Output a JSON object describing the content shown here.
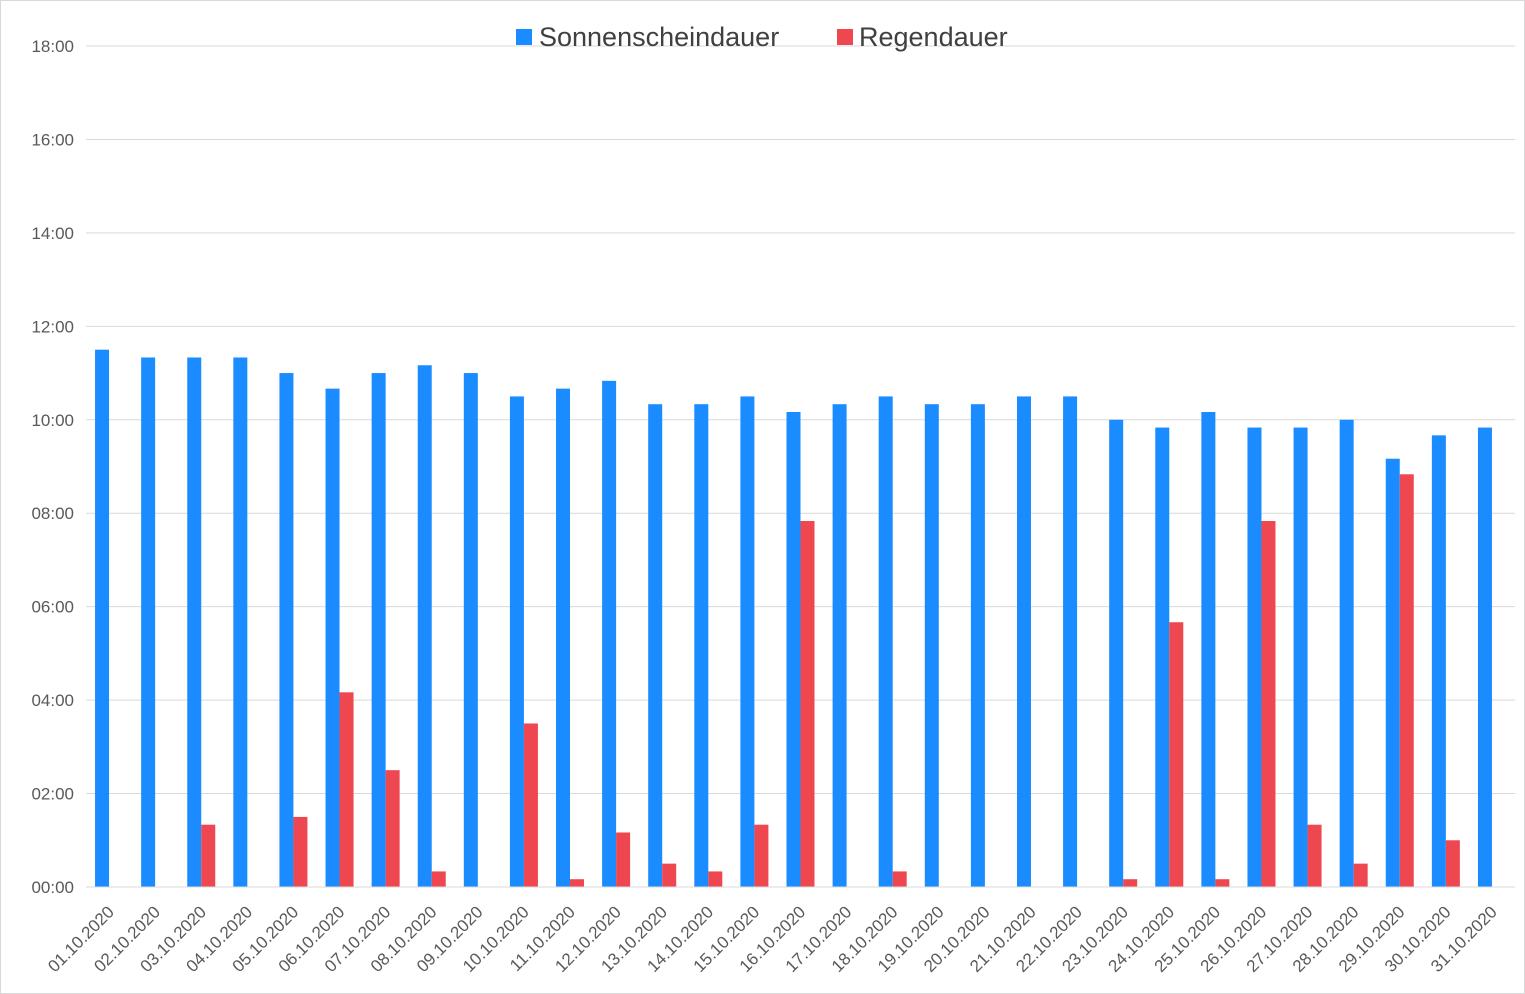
{
  "chart_data": {
    "type": "bar",
    "title": "",
    "xlabel": "",
    "ylabel": "",
    "ylim": [
      "00:00",
      "18:00"
    ],
    "y_ticks": [
      "00:00",
      "02:00",
      "04:00",
      "06:00",
      "08:00",
      "10:00",
      "12:00",
      "14:00",
      "16:00",
      "18:00"
    ],
    "grid": "horizontal",
    "legend_position": "top",
    "categories": [
      "01.10.2020",
      "02.10.2020",
      "03.10.2020",
      "04.10.2020",
      "05.10.2020",
      "06.10.2020",
      "07.10.2020",
      "08.10.2020",
      "09.10.2020",
      "10.10.2020",
      "11.10.2020",
      "12.10.2020",
      "13.10.2020",
      "14.10.2020",
      "15.10.2020",
      "16.10.2020",
      "17.10.2020",
      "18.10.2020",
      "19.10.2020",
      "20.10.2020",
      "21.10.2020",
      "22.10.2020",
      "23.10.2020",
      "24.10.2020",
      "25.10.2020",
      "26.10.2020",
      "27.10.2020",
      "28.10.2020",
      "29.10.2020",
      "30.10.2020",
      "31.10.2020"
    ],
    "series": [
      {
        "name": "Sonnenscheindauer",
        "color": "#1a8cff",
        "values": [
          "11:30",
          "11:20",
          "11:20",
          "11:20",
          "11:00",
          "10:40",
          "11:00",
          "11:10",
          "11:00",
          "10:30",
          "10:40",
          "10:50",
          "10:20",
          "10:20",
          "10:30",
          "10:10",
          "10:20",
          "10:30",
          "10:20",
          "10:20",
          "10:30",
          "10:30",
          "10:00",
          "09:50",
          "10:10",
          "09:50",
          "09:50",
          "10:00",
          "09:10",
          "09:40",
          "09:50"
        ]
      },
      {
        "name": "Regendauer",
        "color": "#ef474f",
        "values": [
          "00:00",
          "00:00",
          "01:20",
          "00:00",
          "01:30",
          "04:10",
          "02:30",
          "00:20",
          "00:00",
          "03:30",
          "00:10",
          "01:10",
          "00:30",
          "00:20",
          "01:20",
          "07:50",
          "00:00",
          "00:20",
          "00:00",
          "00:00",
          "00:00",
          "00:00",
          "00:10",
          "05:40",
          "00:10",
          "07:50",
          "01:20",
          "00:30",
          "08:50",
          "01:00",
          "00:00"
        ]
      }
    ]
  }
}
